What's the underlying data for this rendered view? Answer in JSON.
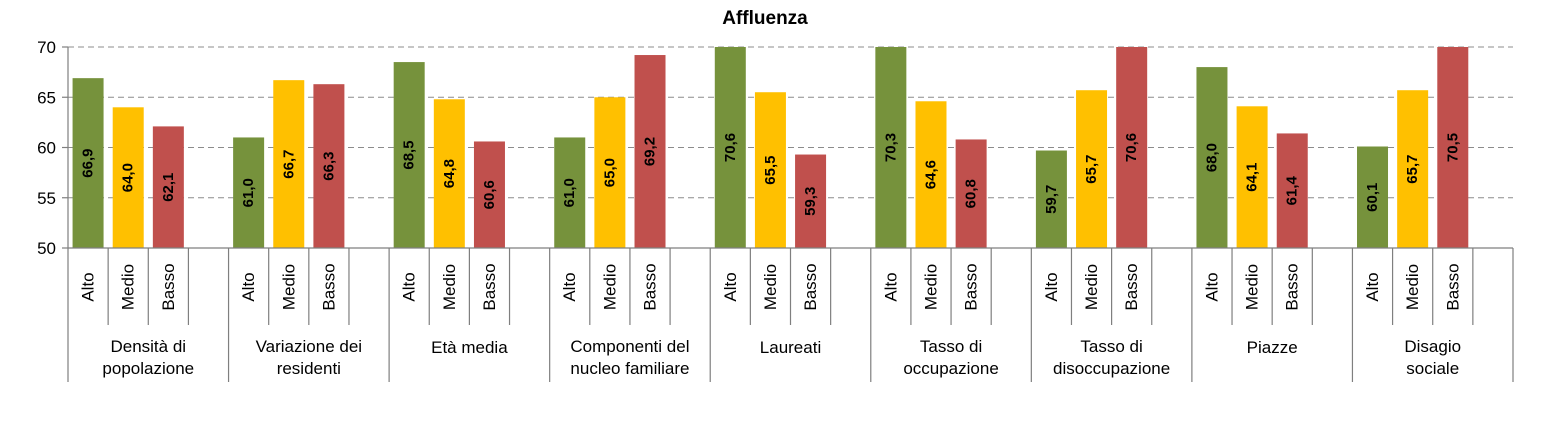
{
  "chart_data": {
    "type": "bar",
    "title": "Affluenza",
    "ylim": [
      50,
      70
    ],
    "yticks": [
      50,
      55,
      60,
      65,
      70
    ],
    "grid": true,
    "legend": "none",
    "subcategories": [
      "Alto",
      "Medio",
      "Basso"
    ],
    "colors": {
      "Alto": "#76923c",
      "Medio": "#ffc000",
      "Basso": "#c0504d"
    },
    "groups": [
      {
        "label": [
          "Densità di",
          "popolazione"
        ],
        "values": [
          66.9,
          64.0,
          62.1
        ],
        "labels": [
          "66,9",
          "64,0",
          "62,1"
        ]
      },
      {
        "label": [
          "Variazione dei",
          "residenti"
        ],
        "values": [
          61.0,
          66.7,
          66.3
        ],
        "labels": [
          "61,0",
          "66,7",
          "66,3"
        ]
      },
      {
        "label": [
          "Età media"
        ],
        "values": [
          68.5,
          64.8,
          60.6
        ],
        "labels": [
          "68,5",
          "64,8",
          "60,6"
        ]
      },
      {
        "label": [
          "Componenti del",
          "nucleo familiare"
        ],
        "values": [
          61.0,
          65.0,
          69.2
        ],
        "labels": [
          "61,0",
          "65,0",
          "69,2"
        ]
      },
      {
        "label": [
          "Laureati"
        ],
        "values": [
          70.6,
          65.5,
          59.3
        ],
        "labels": [
          "70,6",
          "65,5",
          "59,3"
        ]
      },
      {
        "label": [
          "Tasso di",
          "occupazione"
        ],
        "values": [
          70.3,
          64.6,
          60.8
        ],
        "labels": [
          "70,3",
          "64,6",
          "60,8"
        ]
      },
      {
        "label": [
          "Tasso di",
          "disoccupazione"
        ],
        "values": [
          59.7,
          65.7,
          70.6
        ],
        "labels": [
          "59,7",
          "65,7",
          "70,6"
        ]
      },
      {
        "label": [
          "Piazze"
        ],
        "values": [
          68.0,
          64.1,
          61.4
        ],
        "labels": [
          "68,0",
          "64,1",
          "61,4"
        ]
      },
      {
        "label": [
          "Disagio",
          "sociale"
        ],
        "values": [
          60.1,
          65.7,
          70.5
        ],
        "labels": [
          "60,1",
          "65,7",
          "70,5"
        ]
      }
    ]
  }
}
